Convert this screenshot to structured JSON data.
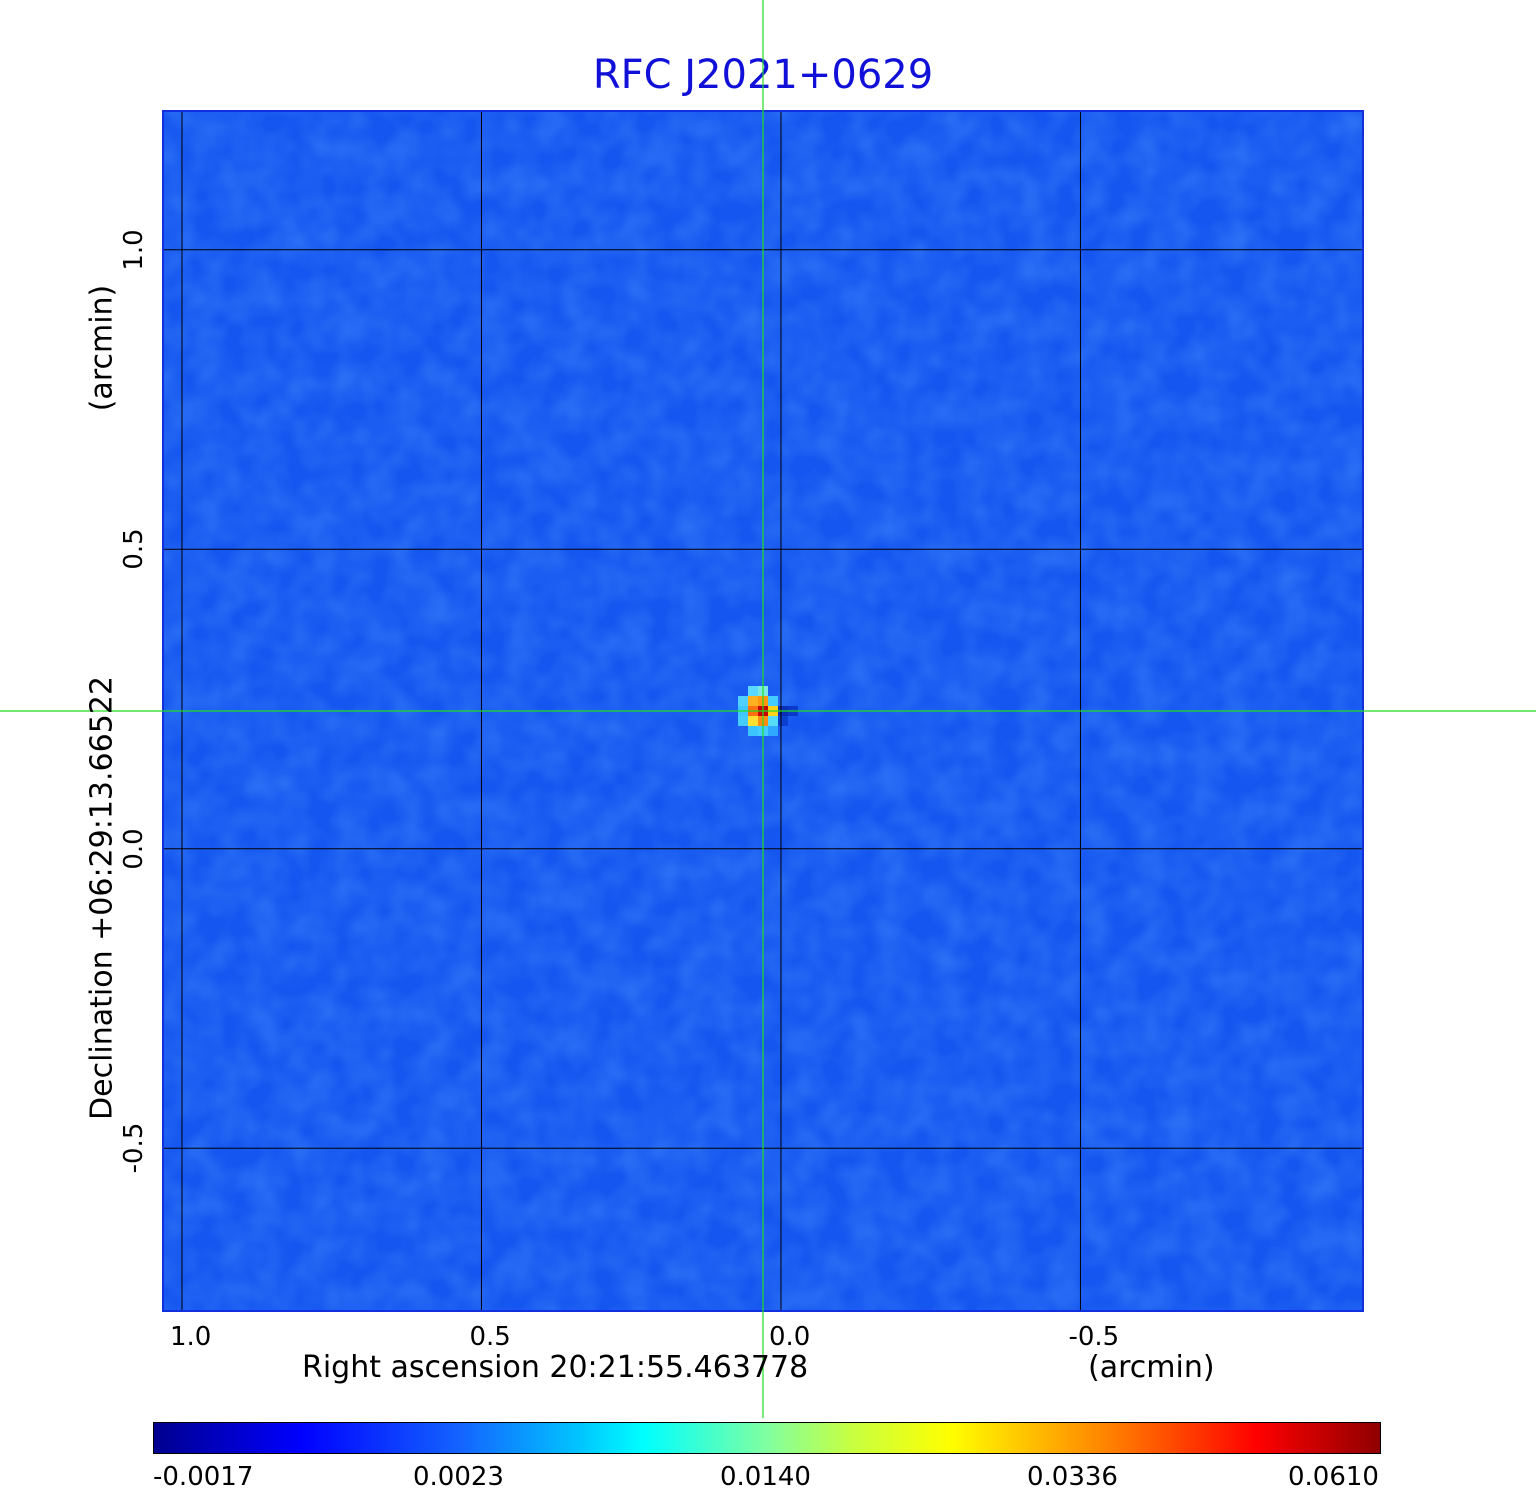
{
  "chart_data": {
    "type": "heatmap",
    "title": "RFC J2021+0629",
    "xlabel": "Right ascension  20:21:55.463778",
    "xunit": "(arcmin)",
    "ylabel": "Declination  +06:29:13.66522",
    "yunit": "(arcmin)",
    "xticks": [
      "1.0",
      "0.5",
      "0.0",
      "-0.5"
    ],
    "yticks": [
      "1.0",
      "0.5",
      "0.0",
      "-0.5"
    ],
    "xtick_values": [
      1.0,
      0.5,
      0.0,
      -0.5
    ],
    "ytick_values": [
      1.0,
      0.5,
      0.0,
      -0.5
    ],
    "xlim": [
      1.03,
      -0.97
    ],
    "ylim": [
      -0.77,
      1.23
    ],
    "grid": true,
    "crosshair": {
      "x": 0.03,
      "y": 0.23
    },
    "source_peak": {
      "x": 0.03,
      "y": 0.23,
      "value": 0.061
    },
    "colorbar": {
      "colormap": "jet",
      "ticks": [
        "-0.0017",
        "0.0023",
        "0.0140",
        "0.0336",
        "0.0610"
      ],
      "tick_values": [
        -0.0017,
        0.0023,
        0.014,
        0.0336,
        0.061
      ]
    }
  },
  "colors": {
    "title": "#1010d8",
    "background_field": "#1656f0",
    "crosshair": "#22dd22",
    "grid": "#000000"
  }
}
